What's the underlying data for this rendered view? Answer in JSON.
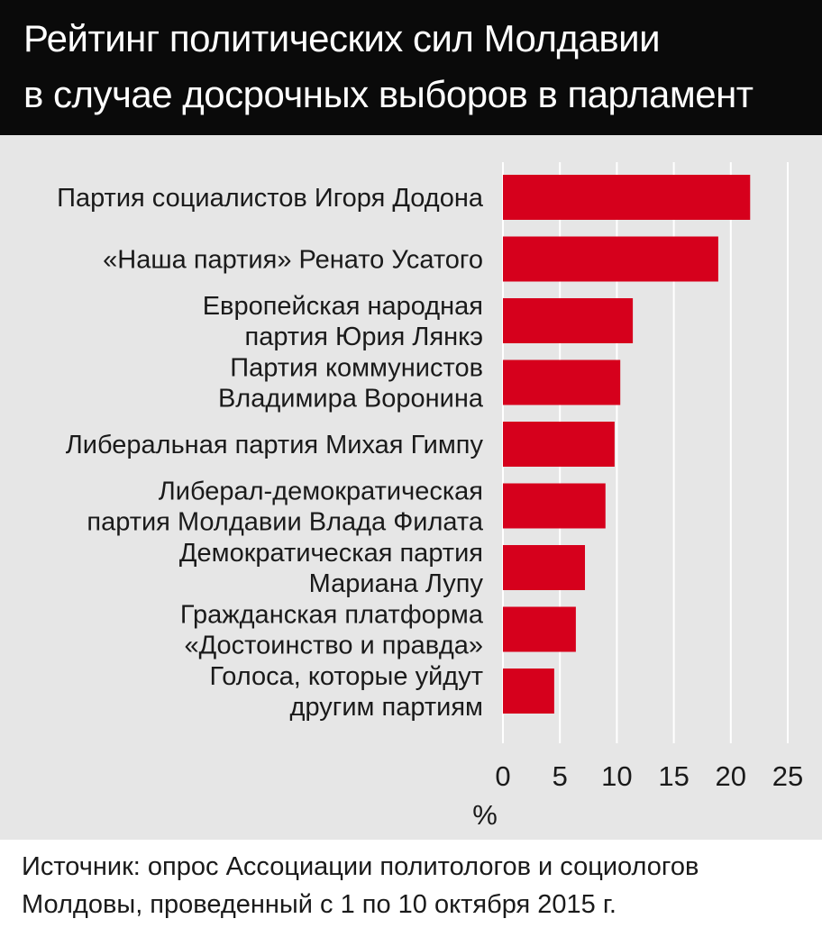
{
  "header": {
    "title_lines": [
      "Рейтинг политических сил Молдавии",
      "в случае досрочных выборов в парламент"
    ]
  },
  "footer": {
    "source_lines": [
      "Источник: опрос Ассоциации политологов и социологов",
      "Молдовы, проведенный с 1 по 10 октября 2015 г."
    ]
  },
  "colors": {
    "bar": "#d6001c",
    "header_bg": "#0a0a0a",
    "plot_bg": "#e6e6e6",
    "grid": "#ffffff"
  },
  "chart_data": {
    "type": "bar",
    "orientation": "horizontal",
    "title": "Рейтинг политических сил Молдавии в случае досрочных выборов в парламент",
    "xlabel": "%",
    "ylabel": "",
    "xlim": [
      0,
      25
    ],
    "ticks": [
      "0",
      "5",
      "10",
      "15",
      "20",
      "25"
    ],
    "grid": true,
    "categories": [
      [
        "Партия социалистов Игоря Додона"
      ],
      [
        "«Наша партия» Ренато Усатого"
      ],
      [
        "Европейская народная",
        "партия Юрия Лянкэ"
      ],
      [
        "Партия коммунистов",
        "Владимира Воронина"
      ],
      [
        "Либеральная партия Михая Гимпу"
      ],
      [
        "Либерал-демократическая",
        "партия Молдавии Влада Филата"
      ],
      [
        "Демократическая партия",
        "Мариана Лупу"
      ],
      [
        "Гражданская платформа",
        "«Достоинство и правда»"
      ],
      [
        "Голоса, которые уйдут",
        "другим партиям"
      ]
    ],
    "values": [
      21.7,
      18.9,
      11.4,
      10.3,
      9.8,
      9.0,
      7.2,
      6.4,
      4.5
    ]
  }
}
